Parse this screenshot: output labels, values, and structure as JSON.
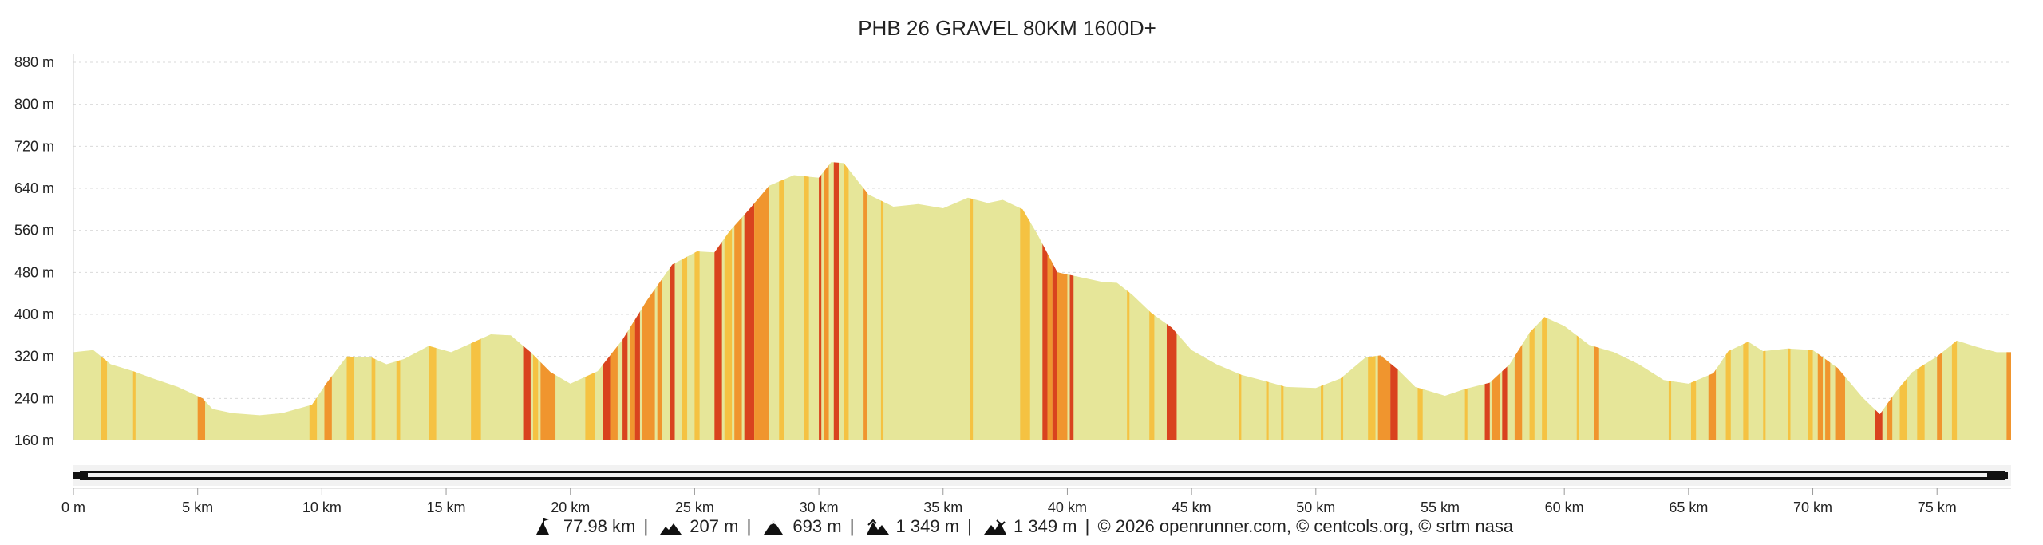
{
  "chart_data": {
    "type": "area",
    "title": "PHB 26 GRAVEL 80KM 1600D+",
    "xlabel": "",
    "ylabel": "",
    "x_unit": "km",
    "y_unit": "m",
    "xlim": [
      0,
      77.98
    ],
    "ylim": [
      160,
      880
    ],
    "x_ticks": [
      0,
      5,
      10,
      15,
      20,
      25,
      30,
      35,
      40,
      45,
      50,
      55,
      60,
      65,
      70,
      75
    ],
    "x_tick_labels": [
      "0 m",
      "5 km",
      "10 km",
      "15 km",
      "20 km",
      "25 km",
      "30 km",
      "35 km",
      "40 km",
      "45 km",
      "50 km",
      "55 km",
      "60 km",
      "65 km",
      "70 km",
      "75 km"
    ],
    "y_ticks": [
      160,
      240,
      320,
      400,
      480,
      560,
      640,
      720,
      800,
      880
    ],
    "y_tick_labels": [
      "160 m",
      "240 m",
      "320 m",
      "400 m",
      "480 m",
      "560 m",
      "640 m",
      "720 m",
      "800 m",
      "880 m"
    ],
    "grid": true,
    "colors": {
      "flat": "#e6e699",
      "moderate": "#f5c242",
      "steep": "#f0952e",
      "very_steep": "#d9431e"
    },
    "x": [
      0,
      0.8,
      1.5,
      2.4,
      3.2,
      4.2,
      5.2,
      5.6,
      6.4,
      7.5,
      8.4,
      9.6,
      10.2,
      11.0,
      12.0,
      12.6,
      13.3,
      14.3,
      15.2,
      16.0,
      16.8,
      17.6,
      18.4,
      19.2,
      20.0,
      21.1,
      22.1,
      23.1,
      24.1,
      25.1,
      25.8,
      26.4,
      27.2,
      28.0,
      29.0,
      30.0,
      30.5,
      31.0,
      32.0,
      33.0,
      34.0,
      35.0,
      36.0,
      36.8,
      37.4,
      38.2,
      38.8,
      39.6,
      40.6,
      41.4,
      42.0,
      42.6,
      43.4,
      44.2,
      45.0,
      46.0,
      47.0,
      47.8,
      48.8,
      50.0,
      51.0,
      52.0,
      52.6,
      53.3,
      54.0,
      55.2,
      56.0,
      57.0,
      57.8,
      58.6,
      59.2,
      60.0,
      61.0,
      62.0,
      63.0,
      64.0,
      65.0,
      66.0,
      66.6,
      67.4,
      68.0,
      69.0,
      70.0,
      71.0,
      72.0,
      72.7,
      73.3,
      74.0,
      75.0,
      75.8,
      76.6,
      77.4,
      77.98
    ],
    "y": [
      328,
      332,
      305,
      292,
      278,
      262,
      240,
      220,
      212,
      208,
      212,
      228,
      270,
      320,
      318,
      305,
      315,
      340,
      328,
      345,
      362,
      360,
      328,
      290,
      268,
      292,
      352,
      428,
      495,
      520,
      518,
      558,
      600,
      645,
      665,
      660,
      690,
      688,
      628,
      605,
      610,
      602,
      622,
      612,
      618,
      600,
      552,
      480,
      470,
      462,
      460,
      438,
      402,
      375,
      332,
      305,
      285,
      275,
      262,
      260,
      278,
      318,
      322,
      295,
      262,
      245,
      258,
      270,
      305,
      365,
      395,
      378,
      342,
      328,
      305,
      275,
      268,
      288,
      330,
      348,
      330,
      335,
      332,
      298,
      242,
      210,
      250,
      290,
      320,
      350,
      338,
      328,
      328
    ],
    "slope_bands": [
      [
        1.1,
        1.35,
        "moderate"
      ],
      [
        2.4,
        2.5,
        "moderate"
      ],
      [
        5.0,
        5.3,
        "steep"
      ],
      [
        9.5,
        9.8,
        "moderate"
      ],
      [
        10.1,
        10.4,
        "steep"
      ],
      [
        11.0,
        11.3,
        "moderate"
      ],
      [
        12.0,
        12.15,
        "moderate"
      ],
      [
        13.0,
        13.15,
        "moderate"
      ],
      [
        14.3,
        14.6,
        "moderate"
      ],
      [
        16.0,
        16.4,
        "moderate"
      ],
      [
        18.1,
        18.4,
        "very_steep"
      ],
      [
        18.5,
        18.7,
        "moderate"
      ],
      [
        18.8,
        19.4,
        "steep"
      ],
      [
        20.6,
        21.0,
        "moderate"
      ],
      [
        21.3,
        21.6,
        "very_steep"
      ],
      [
        21.6,
        21.9,
        "steep"
      ],
      [
        22.1,
        22.3,
        "very_steep"
      ],
      [
        22.4,
        22.6,
        "steep"
      ],
      [
        22.6,
        22.8,
        "very_steep"
      ],
      [
        22.9,
        23.4,
        "steep"
      ],
      [
        23.5,
        23.7,
        "steep"
      ],
      [
        24.0,
        24.2,
        "very_steep"
      ],
      [
        24.5,
        24.7,
        "moderate"
      ],
      [
        25.0,
        25.2,
        "moderate"
      ],
      [
        25.8,
        26.1,
        "very_steep"
      ],
      [
        26.2,
        26.5,
        "moderate"
      ],
      [
        26.6,
        26.9,
        "steep"
      ],
      [
        27.0,
        27.4,
        "very_steep"
      ],
      [
        27.4,
        28.0,
        "steep"
      ],
      [
        28.4,
        28.6,
        "moderate"
      ],
      [
        29.4,
        29.6,
        "moderate"
      ],
      [
        30.0,
        30.1,
        "very_steep"
      ],
      [
        30.2,
        30.4,
        "steep"
      ],
      [
        30.6,
        30.8,
        "very_steep"
      ],
      [
        31.0,
        31.2,
        "moderate"
      ],
      [
        31.8,
        31.95,
        "steep"
      ],
      [
        32.5,
        32.6,
        "moderate"
      ],
      [
        36.1,
        36.2,
        "moderate"
      ],
      [
        38.1,
        38.5,
        "moderate"
      ],
      [
        39.0,
        39.2,
        "very_steep"
      ],
      [
        39.2,
        39.4,
        "steep"
      ],
      [
        39.4,
        39.6,
        "very_steep"
      ],
      [
        39.6,
        40.0,
        "steep"
      ],
      [
        40.1,
        40.25,
        "very_steep"
      ],
      [
        42.4,
        42.5,
        "moderate"
      ],
      [
        43.3,
        43.5,
        "moderate"
      ],
      [
        44.0,
        44.4,
        "very_steep"
      ],
      [
        46.9,
        47.0,
        "moderate"
      ],
      [
        48.0,
        48.1,
        "moderate"
      ],
      [
        48.6,
        48.7,
        "moderate"
      ],
      [
        50.2,
        50.3,
        "moderate"
      ],
      [
        51.0,
        51.1,
        "moderate"
      ],
      [
        52.1,
        52.4,
        "moderate"
      ],
      [
        52.5,
        53.0,
        "steep"
      ],
      [
        53.0,
        53.3,
        "very_steep"
      ],
      [
        54.1,
        54.3,
        "moderate"
      ],
      [
        56.0,
        56.1,
        "moderate"
      ],
      [
        56.8,
        57.0,
        "very_steep"
      ],
      [
        57.1,
        57.4,
        "steep"
      ],
      [
        57.5,
        57.7,
        "very_steep"
      ],
      [
        58.0,
        58.3,
        "steep"
      ],
      [
        58.6,
        58.8,
        "moderate"
      ],
      [
        59.1,
        59.3,
        "moderate"
      ],
      [
        60.5,
        60.6,
        "moderate"
      ],
      [
        61.2,
        61.4,
        "steep"
      ],
      [
        64.2,
        64.3,
        "moderate"
      ],
      [
        65.1,
        65.3,
        "moderate"
      ],
      [
        65.8,
        66.1,
        "steep"
      ],
      [
        66.5,
        66.7,
        "moderate"
      ],
      [
        67.2,
        67.4,
        "moderate"
      ],
      [
        68.0,
        68.1,
        "moderate"
      ],
      [
        69.0,
        69.1,
        "moderate"
      ],
      [
        69.8,
        70.0,
        "moderate"
      ],
      [
        70.2,
        70.4,
        "steep"
      ],
      [
        70.5,
        70.7,
        "steep"
      ],
      [
        70.9,
        71.3,
        "steep"
      ],
      [
        72.5,
        72.8,
        "very_steep"
      ],
      [
        73.0,
        73.2,
        "steep"
      ],
      [
        73.5,
        73.8,
        "moderate"
      ],
      [
        74.2,
        74.5,
        "moderate"
      ],
      [
        75.0,
        75.2,
        "steep"
      ],
      [
        75.6,
        75.8,
        "moderate"
      ],
      [
        77.8,
        77.98,
        "steep"
      ]
    ]
  },
  "footer": {
    "distance": "77.98 km",
    "min_altitude": "207 m",
    "max_altitude": "693 m",
    "elevation_gain": "1 349 m",
    "elevation_loss": "1 349 m",
    "separator": "|",
    "credits": "© 2026 openrunner.com, © centcols.org, © srtm nasa",
    "icons": [
      "distance-icon",
      "min-altitude-icon",
      "max-altitude-icon",
      "elevation-gain-icon",
      "elevation-loss-icon"
    ]
  }
}
